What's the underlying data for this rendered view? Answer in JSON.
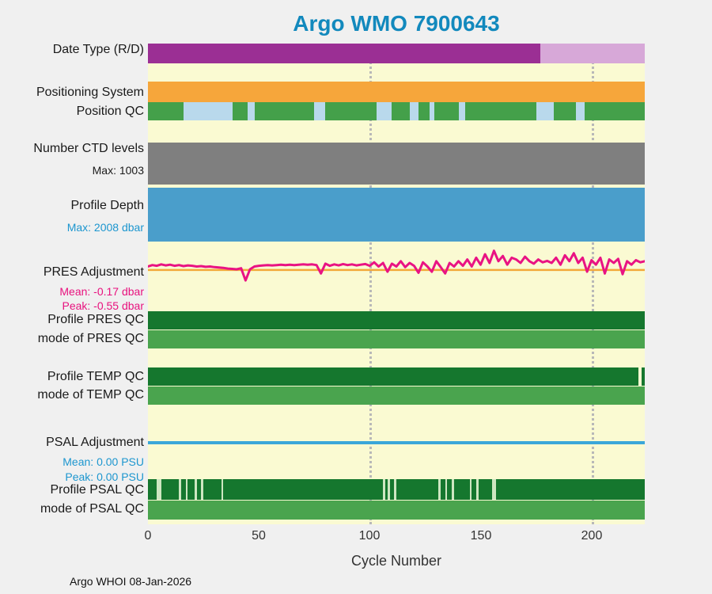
{
  "footer": {
    "text": "Argo WHOI 08-Jan-2026"
  },
  "colors": {
    "figure_bg": "#f0f0f0",
    "plot_bg": "#fafad2",
    "title": "#1289bd",
    "date_type_dark": "#9b2f94",
    "date_type_light": "#d7a8d8",
    "positioning_orange": "#f6a63b",
    "qc_green": "#44a04a",
    "qc_light_blue": "#b9d9ec",
    "ctd_gray": "#7f7f7f",
    "depth_blue": "#4a9ecb",
    "pres_line": "#e91383",
    "pres_ref_line": "#f2a93b",
    "dark_green": "#15772e",
    "medium_green": "#4aa44e",
    "psal_line": "#3ba7d9",
    "gridline": "#b8b8b8"
  },
  "chart_data": {
    "type": "status-timeline",
    "title": "Argo WMO 7900643",
    "xlabel": "Cycle Number",
    "x_ticks": [
      "0",
      "50",
      "100",
      "150",
      "200"
    ],
    "x_range": [
      0,
      224
    ],
    "grid_cycles": [
      100,
      200
    ],
    "legend_position": "left-labels",
    "rows": [
      {
        "id": "date-type",
        "label": "Date Type (R/D)",
        "kind": "strip",
        "base": "#9b2f94",
        "overlays": [
          {
            "start": 177,
            "end": 224,
            "color": "#d7a8d8"
          }
        ]
      },
      {
        "id": "positioning-system",
        "label": "Positioning System",
        "kind": "strip",
        "base": "#f6a63b",
        "overlays": []
      },
      {
        "id": "position-qc",
        "label": "Position QC",
        "kind": "strip",
        "base": "#44a04a",
        "overlays": [
          {
            "start": 16,
            "end": 38,
            "color": "#b9d9ec"
          },
          {
            "start": 45,
            "end": 48,
            "color": "#b9d9ec"
          },
          {
            "start": 75,
            "end": 80,
            "color": "#b9d9ec"
          },
          {
            "start": 103,
            "end": 110,
            "color": "#b9d9ec"
          },
          {
            "start": 118,
            "end": 122,
            "color": "#b9d9ec"
          },
          {
            "start": 127,
            "end": 129,
            "color": "#b9d9ec"
          },
          {
            "start": 140,
            "end": 143,
            "color": "#b9d9ec"
          },
          {
            "start": 175,
            "end": 183,
            "color": "#b9d9ec"
          },
          {
            "start": 193,
            "end": 197,
            "color": "#b9d9ec"
          }
        ]
      },
      {
        "id": "ctd-levels",
        "label": "Number CTD levels",
        "sublabel": "Max: 1003",
        "max": 1003,
        "kind": "strip",
        "base": "#7f7f7f",
        "overlays": []
      },
      {
        "id": "profile-depth",
        "label": "Profile Depth",
        "sublabel": "Max: 2008 dbar",
        "max": 2008,
        "units": "dbar",
        "kind": "strip",
        "base": "#4a9ecb",
        "overlays": []
      },
      {
        "id": "pres-adjustment",
        "label": "PRES Adjustment",
        "sublabels": [
          "Mean: -0.17 dbar",
          "Peak: -0.55 dbar"
        ],
        "mean": -0.17,
        "peak": -0.55,
        "units": "dbar",
        "kind": "line",
        "color": "#e91383",
        "ref_color": "#f2a93b",
        "ref_value": 0,
        "x_start": 0,
        "x_step": 2,
        "y_top": -0.7,
        "y_bottom": 1.16,
        "values": [
          -0.1,
          -0.14,
          -0.12,
          -0.16,
          -0.13,
          -0.15,
          -0.12,
          -0.14,
          -0.11,
          -0.13,
          -0.12,
          -0.1,
          -0.11,
          -0.09,
          -0.1,
          -0.08,
          -0.07,
          -0.06,
          -0.04,
          -0.03,
          -0.02,
          -0.05,
          0.3,
          -0.02,
          -0.1,
          -0.12,
          -0.13,
          -0.14,
          -0.13,
          -0.14,
          -0.15,
          -0.14,
          -0.15,
          -0.14,
          -0.15,
          -0.16,
          -0.15,
          -0.16,
          -0.14,
          0.1,
          -0.18,
          -0.12,
          -0.16,
          -0.13,
          -0.17,
          -0.14,
          -0.16,
          -0.13,
          -0.15,
          -0.17,
          -0.12,
          -0.22,
          -0.1,
          -0.2,
          0.05,
          -0.18,
          -0.1,
          -0.25,
          -0.08,
          -0.2,
          -0.12,
          0.08,
          -0.22,
          -0.1,
          0.05,
          -0.25,
          -0.08,
          0.1,
          -0.2,
          -0.1,
          -0.25,
          -0.12,
          -0.3,
          -0.1,
          -0.35,
          -0.15,
          -0.45,
          -0.2,
          -0.55,
          -0.25,
          -0.4,
          -0.15,
          -0.35,
          -0.3,
          -0.2,
          -0.38,
          -0.25,
          -0.18,
          -0.3,
          -0.22,
          -0.26,
          -0.2,
          -0.35,
          -0.15,
          -0.42,
          -0.25,
          -0.48,
          -0.2,
          -0.35,
          0.05,
          -0.28,
          -0.15,
          -0.35,
          0.1,
          -0.3,
          -0.2,
          -0.32,
          0.12,
          -0.25,
          -0.15,
          -0.28,
          -0.22,
          -0.25
        ]
      },
      {
        "id": "profile-pres-qc",
        "label": "Profile PRES QC",
        "kind": "strip",
        "base": "#15772e",
        "overlays": []
      },
      {
        "id": "mode-pres-qc",
        "label": "mode of PRES QC",
        "kind": "strip",
        "base": "#4aa44e",
        "overlays": []
      },
      {
        "id": "profile-temp-qc",
        "label": "Profile TEMP QC",
        "kind": "strip",
        "base": "#15772e",
        "overlays": [
          {
            "start": 221,
            "end": 222.5,
            "color": "#fafad2"
          }
        ]
      },
      {
        "id": "mode-temp-qc",
        "label": "mode of TEMP QC",
        "kind": "strip",
        "base": "#4aa44e",
        "overlays": []
      },
      {
        "id": "psal-adjustment",
        "label": "PSAL Adjustment",
        "sublabels": [
          "Mean: 0.00 PSU",
          "Peak: 0.00 PSU"
        ],
        "mean": 0.0,
        "peak": 0.0,
        "units": "PSU",
        "kind": "strip",
        "base": "#3ba7d9",
        "overlays": []
      },
      {
        "id": "profile-psal-qc",
        "label": "Profile PSAL QC",
        "kind": "strip",
        "base": "#15772e",
        "overlays": [
          {
            "start": 4,
            "end": 6,
            "color": "#cde6c1"
          },
          {
            "start": 14,
            "end": 15,
            "color": "#cde6c1"
          },
          {
            "start": 17,
            "end": 18,
            "color": "#cde6c1"
          },
          {
            "start": 21,
            "end": 22,
            "color": "#cde6c1"
          },
          {
            "start": 24,
            "end": 25,
            "color": "#cde6c1"
          },
          {
            "start": 33,
            "end": 34,
            "color": "#cde6c1"
          },
          {
            "start": 106,
            "end": 107,
            "color": "#cde6c1"
          },
          {
            "start": 108,
            "end": 109,
            "color": "#cde6c1"
          },
          {
            "start": 111,
            "end": 112,
            "color": "#cde6c1"
          },
          {
            "start": 131,
            "end": 132,
            "color": "#cde6c1"
          },
          {
            "start": 134,
            "end": 135,
            "color": "#cde6c1"
          },
          {
            "start": 137,
            "end": 138,
            "color": "#cde6c1"
          },
          {
            "start": 145,
            "end": 146,
            "color": "#cde6c1"
          },
          {
            "start": 148,
            "end": 149,
            "color": "#cde6c1"
          },
          {
            "start": 155,
            "end": 157,
            "color": "#cde6c1"
          }
        ]
      },
      {
        "id": "mode-psal-qc",
        "label": "mode of PSAL QC",
        "kind": "strip",
        "base": "#4aa44e",
        "overlays": []
      }
    ]
  }
}
